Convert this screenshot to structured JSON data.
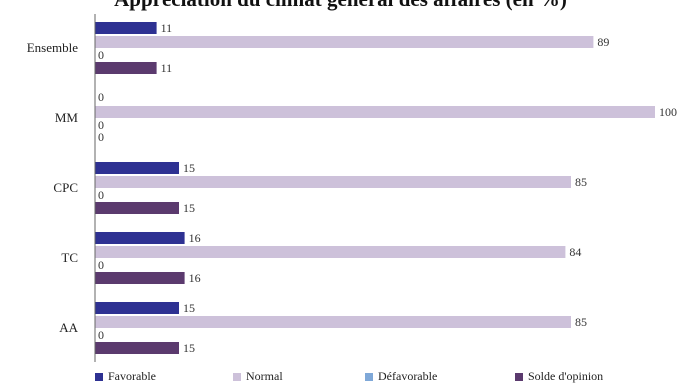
{
  "chart_data": {
    "type": "bar",
    "orientation": "horizontal",
    "title": "Appréciation du climat général des affaires (en %)",
    "categories": [
      "Ensemble",
      "MM",
      "CPC",
      "TC",
      "AA"
    ],
    "series": [
      {
        "name": "Favorable",
        "color": "#2e3192",
        "values": [
          11,
          0,
          15,
          16,
          15
        ]
      },
      {
        "name": "Normal",
        "color": "#cdc1da",
        "values": [
          89,
          100,
          85,
          84,
          85
        ]
      },
      {
        "name": "Défavorable",
        "color": "#7fa8d8",
        "values": [
          0,
          0,
          0,
          0,
          0
        ]
      },
      {
        "name": "Solde d'opinion",
        "color": "#5b3a6e",
        "values": [
          11,
          0,
          15,
          16,
          15
        ]
      }
    ],
    "xlim": [
      0,
      100
    ],
    "grid": false,
    "legend": "bottom"
  }
}
